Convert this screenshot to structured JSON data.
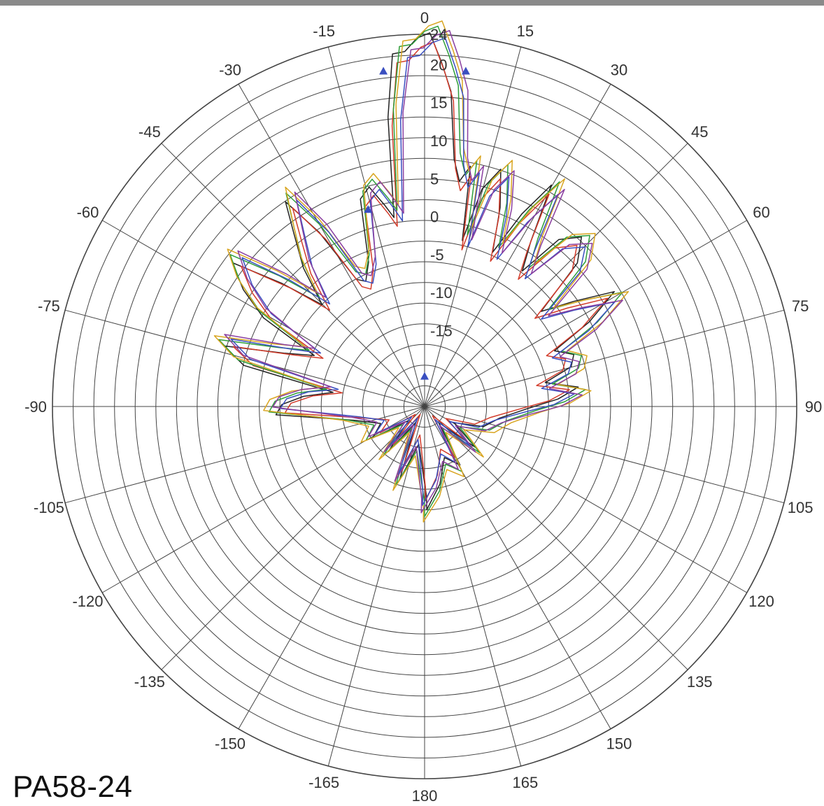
{
  "label": "PA58-24",
  "chart_data": {
    "type": "polar-line",
    "angle_ticks": [
      0,
      15,
      30,
      45,
      60,
      75,
      90,
      105,
      120,
      135,
      150,
      165,
      180,
      -165,
      -150,
      -135,
      -120,
      -105,
      -90,
      -75,
      -60,
      -45,
      -30,
      -15
    ],
    "angle_tick_labels": [
      "0",
      "15",
      "30",
      "45",
      "60",
      "75",
      "90",
      "105",
      "120",
      "135",
      "150",
      "165",
      "180",
      "-165",
      "-150",
      "-135",
      "-120",
      "-105",
      "-90",
      "-75",
      "-60",
      "-45",
      "-30",
      "-15"
    ],
    "radial_range": [
      -25,
      24
    ],
    "radial_ticks": [
      24,
      20,
      15,
      10,
      5,
      0,
      -5,
      -10,
      -15
    ],
    "radial_tick_labels": [
      "24",
      "20",
      "15",
      "10",
      "5",
      "0",
      "-5",
      "-10",
      "-15"
    ],
    "grid": true,
    "colors": [
      "#222222",
      "#d23b2a",
      "#2e9e3a",
      "#d9a520",
      "#3a4fc0",
      "#8a3fa0"
    ],
    "base_pattern": [
      [
        -180,
        -12
      ],
      [
        -170,
        -20
      ],
      [
        -160,
        -16
      ],
      [
        -150,
        -22
      ],
      [
        -140,
        -18
      ],
      [
        -130,
        -21
      ],
      [
        -120,
        -17
      ],
      [
        -110,
        -20
      ],
      [
        -100,
        -15
      ],
      [
        -92,
        -6
      ],
      [
        -88,
        -5
      ],
      [
        -84,
        -9
      ],
      [
        -80,
        -14
      ],
      [
        -76,
        0
      ],
      [
        -72,
        2
      ],
      [
        -68,
        -4
      ],
      [
        -64,
        -9
      ],
      [
        -60,
        -2
      ],
      [
        -56,
        4
      ],
      [
        -52,
        6
      ],
      [
        -48,
        1
      ],
      [
        -44,
        -6
      ],
      [
        -40,
        -2
      ],
      [
        -36,
        4
      ],
      [
        -33,
        7
      ],
      [
        -30,
        3
      ],
      [
        -27,
        -6
      ],
      [
        -24,
        -8
      ],
      [
        -20,
        -4
      ],
      [
        -16,
        3
      ],
      [
        -13,
        6
      ],
      [
        -10,
        2
      ],
      [
        -8,
        -1
      ],
      [
        -6,
        14
      ],
      [
        -4,
        21
      ],
      [
        -2,
        23
      ],
      [
        0,
        23.5
      ],
      [
        2,
        23
      ],
      [
        4,
        21
      ],
      [
        6,
        16
      ],
      [
        8,
        9
      ],
      [
        10,
        5
      ],
      [
        12,
        6
      ],
      [
        14,
        -2
      ],
      [
        16,
        4
      ],
      [
        19,
        9
      ],
      [
        22,
        3
      ],
      [
        25,
        -4
      ],
      [
        28,
        4
      ],
      [
        31,
        8
      ],
      [
        34,
        2
      ],
      [
        37,
        -3
      ],
      [
        40,
        2
      ],
      [
        44,
        6
      ],
      [
        48,
        2
      ],
      [
        52,
        -4
      ],
      [
        56,
        -1
      ],
      [
        60,
        3
      ],
      [
        64,
        0
      ],
      [
        68,
        -7
      ],
      [
        72,
        -3
      ],
      [
        76,
        -5
      ],
      [
        80,
        -10
      ],
      [
        84,
        -4
      ],
      [
        88,
        -8
      ],
      [
        92,
        -10
      ],
      [
        100,
        -15
      ],
      [
        110,
        -18
      ],
      [
        120,
        -20
      ],
      [
        130,
        -17
      ],
      [
        140,
        -21
      ],
      [
        150,
        -16
      ],
      [
        160,
        -19
      ],
      [
        170,
        -14
      ],
      [
        180,
        -12
      ]
    ],
    "series_offsets": [
      0,
      -1.2,
      0.9,
      1.6,
      -0.6,
      0.4
    ]
  }
}
